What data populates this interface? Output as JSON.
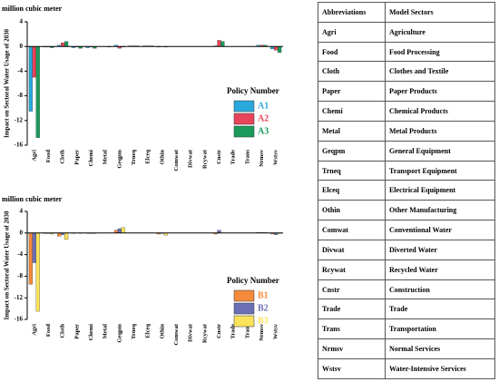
{
  "chart_data": [
    {
      "type": "bar",
      "unit_label": "million cubic meter",
      "y_label": "Impact on Sectoral Water Usage of 2030",
      "legend_title": "Policy Number",
      "categories": [
        "Agri",
        "Food",
        "Cloth",
        "Paper",
        "Chemi",
        "Metal",
        "Geqpm",
        "Trneq",
        "Elceq",
        "Othin",
        "Comwat",
        "Divwat",
        "Rcywat",
        "Cnstr",
        "Trade",
        "Trans",
        "Nrmsv",
        "Wstsv"
      ],
      "series": [
        {
          "name": "A1",
          "color": "#29a8dc",
          "values": [
            -10.5,
            -0.1,
            0.2,
            -0.2,
            -0.2,
            0,
            0.2,
            0.1,
            0.1,
            -0.1,
            0,
            0,
            0,
            0.1,
            0,
            0,
            0.2,
            -0.4
          ]
        },
        {
          "name": "A2",
          "color": "#e8445a",
          "values": [
            -5,
            -0.1,
            0.6,
            -0.1,
            -0.1,
            0,
            -0.3,
            0.1,
            0.1,
            0,
            0,
            0,
            0,
            1.0,
            0,
            0,
            0.2,
            -0.6
          ]
        },
        {
          "name": "A3",
          "color": "#1a9a5a",
          "values": [
            -14.8,
            -0.2,
            0.8,
            -0.3,
            -0.3,
            -0.1,
            -0.1,
            0.1,
            0.1,
            -0.1,
            0,
            0,
            0,
            0.8,
            0,
            0,
            0.2,
            -1.0
          ]
        }
      ],
      "ylim": [
        -16,
        4
      ],
      "yticks": [
        -16,
        -12,
        -8,
        -4,
        0,
        4
      ]
    },
    {
      "type": "bar",
      "unit_label": "million cubic meter",
      "y_label": "Impact on Sectoral Water Usage of 2030",
      "legend_title": "Policy Number",
      "categories": [
        "Agri",
        "Food",
        "Cloth",
        "Paper",
        "Chemi",
        "Metal",
        "Geqpm",
        "Trneq",
        "Elceq",
        "Othin",
        "Comwat",
        "Divwat",
        "Rcywat",
        "Cnstr",
        "Trade",
        "Trans",
        "Nrmsv",
        "Wstsv"
      ],
      "series": [
        {
          "name": "B1",
          "color": "#f58a3c",
          "values": [
            -9.5,
            -0.1,
            -0.6,
            -0.1,
            -0.1,
            0,
            0.5,
            0,
            0,
            -0.2,
            0,
            0,
            0,
            -0.2,
            0,
            0,
            0.1,
            -0.2
          ]
        },
        {
          "name": "B2",
          "color": "#6a6fb5",
          "values": [
            -5.5,
            -0.1,
            -0.3,
            0,
            -0.1,
            0,
            0.8,
            0,
            0,
            -0.1,
            0,
            0,
            0,
            0.5,
            0,
            0,
            0.1,
            -0.3
          ]
        },
        {
          "name": "B3",
          "color": "#fbe25a",
          "values": [
            -14.5,
            -0.2,
            -1.2,
            -0.1,
            -0.1,
            0,
            1.0,
            0,
            0,
            -0.4,
            0,
            0,
            0,
            0,
            0,
            0,
            0.1,
            -0.1
          ]
        }
      ],
      "ylim": [
        -16,
        4
      ],
      "yticks": [
        -16,
        -12,
        -8,
        -4,
        0,
        4
      ]
    }
  ],
  "table": {
    "header": [
      "Abbreviations",
      "Model Sectors"
    ],
    "rows": [
      [
        "Agri",
        "Agriculture"
      ],
      [
        "Food",
        "Food Processing"
      ],
      [
        "Cloth",
        "Clothes and Textile"
      ],
      [
        "Paper",
        "Paper Products"
      ],
      [
        "Chemi",
        "Chemical Products"
      ],
      [
        "Metal",
        "Metal Products"
      ],
      [
        "Geqpm",
        "General Equipment"
      ],
      [
        "Trneq",
        "Transport Equipment"
      ],
      [
        "Elceq",
        "Electrical Equipment"
      ],
      [
        "Othin",
        "Other Manufacturing"
      ],
      [
        "Comwat",
        "Conventional Water"
      ],
      [
        "Divwat",
        "Diverted Water"
      ],
      [
        "Rcywat",
        "Recycled Water"
      ],
      [
        "Cnstr",
        "Construction"
      ],
      [
        "Trade",
        "Trade"
      ],
      [
        "Trans",
        "Transportation"
      ],
      [
        "Nrmsv",
        "Normal Services"
      ],
      [
        "Wstsv",
        "Water-Intensive Services"
      ]
    ]
  }
}
